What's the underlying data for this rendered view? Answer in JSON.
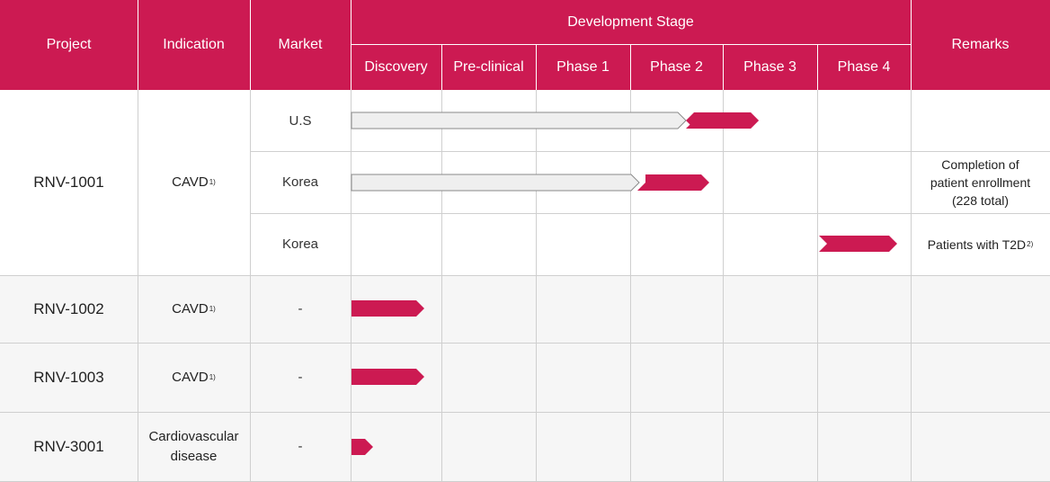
{
  "header": {
    "project": "Project",
    "indication": "Indication",
    "market": "Market",
    "development_stage": "Development Stage",
    "remarks": "Remarks",
    "stages": [
      "Discovery",
      "Pre-clinical",
      "Phase 1",
      "Phase 2",
      "Phase 3",
      "Phase 4"
    ]
  },
  "rows": {
    "rnv1001": {
      "project": "RNV-1001",
      "indication": "CAVD",
      "indication_note": "1)",
      "markets": [
        {
          "market": "U.S",
          "remark": ""
        },
        {
          "market": "Korea",
          "remark_lines": [
            "Completion of",
            "patient enrollment",
            "(228 total)"
          ]
        },
        {
          "market": "Korea",
          "remark": "Patients with T2D",
          "remark_note": "2)"
        }
      ]
    },
    "rnv1002": {
      "project": "RNV-1002",
      "indication": "CAVD",
      "indication_note": "1)",
      "market": "-"
    },
    "rnv1003": {
      "project": "RNV-1003",
      "indication": "CAVD",
      "indication_note": "1)",
      "market": "-"
    },
    "rnv3001": {
      "project": "RNV-3001",
      "indication_lines": [
        "Cardiovascular",
        "disease"
      ],
      "market": "-"
    }
  },
  "progress": [
    {
      "row": "rnv1001-us",
      "completed_through": "Phase 2",
      "current": "Phase 3"
    },
    {
      "row": "rnv1001-korea-1",
      "completed_through": "Phase 1",
      "current": "Phase 2"
    },
    {
      "row": "rnv1001-korea-2",
      "completed_through": null,
      "current": "Phase 4"
    },
    {
      "row": "rnv1002",
      "completed_through": null,
      "current": "Discovery"
    },
    {
      "row": "rnv1003",
      "completed_through": null,
      "current": "Discovery"
    },
    {
      "row": "rnv3001",
      "completed_through": null,
      "current": "Discovery",
      "partial": true
    }
  ],
  "colors": {
    "header": "#cc1a52",
    "current_arrow": "#cc1a52",
    "completed_arrow": "#efefef",
    "alt_row": "#f6f6f6",
    "grid": "#cfcfcf"
  }
}
